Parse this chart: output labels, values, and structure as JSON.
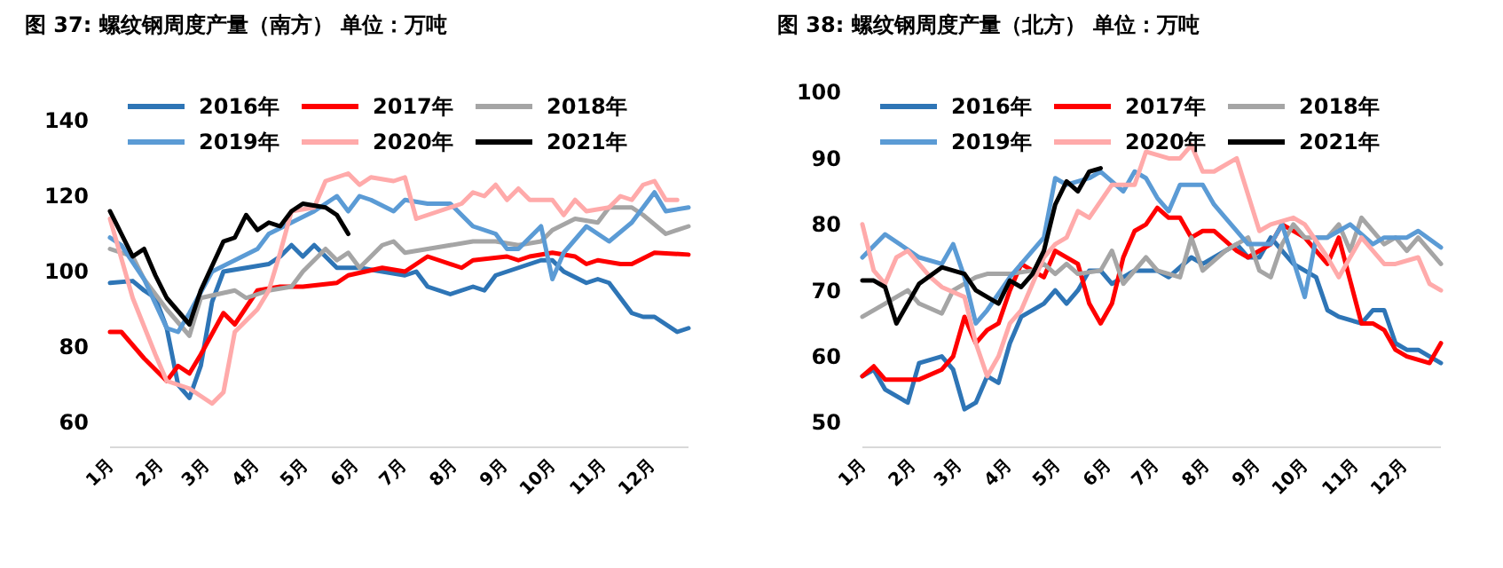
{
  "chart_data": [
    {
      "type": "line",
      "title": "图 37:   螺纹钢周度产量（南方）    单位：万吨",
      "legend": "top",
      "grid": false,
      "marker": "none",
      "line_style": "solid",
      "xlim": [
        "--01-01",
        "--12-24"
      ],
      "xticks": [
        {
          "value": "--01-01",
          "label": "1月"
        },
        {
          "value": "--02-01",
          "label": "2月"
        },
        {
          "value": "--03-01",
          "label": "3月"
        },
        {
          "value": "--04-01",
          "label": "4月"
        },
        {
          "value": "--05-01",
          "label": "5月"
        },
        {
          "value": "--06-01",
          "label": "6月"
        },
        {
          "value": "--07-01",
          "label": "7月"
        },
        {
          "value": "--08-01",
          "label": "8月"
        },
        {
          "value": "--09-01",
          "label": "9月"
        },
        {
          "value": "--10-01",
          "label": "10月"
        },
        {
          "value": "--11-01",
          "label": "11月"
        },
        {
          "value": "--12-01",
          "label": "12月"
        }
      ],
      "ylim": [
        60,
        140
      ],
      "yticks": [
        60,
        80,
        100,
        120,
        140
      ],
      "series": [
        {
          "name": "2016年",
          "color": "#2e75b6",
          "x": [
            "--01-01",
            "--01-15",
            "--01-22",
            "--01-29",
            "--02-05",
            "--02-12",
            "--02-19",
            "--02-26",
            "--03-05",
            "--03-12",
            "--03-26",
            "--04-09",
            "--04-16",
            "--04-23",
            "--04-30",
            "--05-07",
            "--05-21",
            "--06-04",
            "--06-18",
            "--07-02",
            "--07-09",
            "--07-16",
            "--07-30",
            "--08-13",
            "--08-20",
            "--08-27",
            "--09-10",
            "--09-24",
            "--10-01",
            "--10-08",
            "--10-22",
            "--10-29",
            "--11-05",
            "--11-19",
            "--11-26",
            "--12-03",
            "--12-17",
            "--12-24"
          ],
          "values": [
            97,
            97.5,
            95,
            93,
            85,
            70,
            66.5,
            75,
            92,
            100,
            101,
            102,
            104,
            107,
            104,
            107,
            101,
            101,
            100,
            99,
            100,
            96,
            94,
            96,
            95,
            99,
            101,
            103,
            103,
            100,
            97,
            98,
            97,
            89,
            88,
            88,
            84,
            85
          ]
        },
        {
          "name": "2017年",
          "color": "#ff0000",
          "x": [
            "--01-01",
            "--01-08",
            "--01-22",
            "--02-05",
            "--02-12",
            "--02-19",
            "--02-26",
            "--03-12",
            "--03-19",
            "--04-02",
            "--04-16",
            "--04-30",
            "--05-21",
            "--05-28",
            "--06-18",
            "--07-02",
            "--07-16",
            "--07-23",
            "--08-06",
            "--08-13",
            "--09-03",
            "--09-10",
            "--09-17",
            "--10-01",
            "--10-15",
            "--10-22",
            "--10-29",
            "--11-12",
            "--11-19",
            "--12-03",
            "--12-24"
          ],
          "values": [
            84,
            84,
            77,
            71,
            75,
            73,
            78,
            89,
            86,
            95,
            96,
            96,
            97,
            99,
            101,
            100,
            104,
            103,
            101,
            103,
            104,
            103,
            104,
            105,
            104,
            102,
            103,
            102,
            102,
            105,
            104.5
          ]
        },
        {
          "name": "2018年",
          "color": "#a5a5a5",
          "x": [
            "--01-01",
            "--01-15",
            "--01-22",
            "--02-05",
            "--02-19",
            "--02-26",
            "--03-19",
            "--03-26",
            "--04-09",
            "--04-23",
            "--04-30",
            "--05-14",
            "--05-21",
            "--05-28",
            "--06-04",
            "--06-18",
            "--06-25",
            "--07-02",
            "--07-16",
            "--07-30",
            "--08-13",
            "--08-27",
            "--09-10",
            "--09-24",
            "--10-01",
            "--10-15",
            "--10-29",
            "--11-05",
            "--11-19",
            "--11-26",
            "--12-10",
            "--12-24"
          ],
          "values": [
            106,
            104,
            98,
            90,
            83,
            93,
            95,
            93,
            95,
            96,
            100,
            106,
            103,
            105,
            101,
            107,
            108,
            105,
            106,
            107,
            108,
            108,
            107,
            108,
            111,
            114,
            113,
            117,
            117,
            115,
            110,
            112
          ]
        },
        {
          "name": "2019年",
          "color": "#5b9bd5",
          "x": [
            "--01-01",
            "--01-08",
            "--01-22",
            "--02-05",
            "--02-12",
            "--02-19",
            "--03-05",
            "--03-19",
            "--04-02",
            "--04-09",
            "--04-23",
            "--05-07",
            "--05-21",
            "--05-28",
            "--06-04",
            "--06-11",
            "--06-25",
            "--07-02",
            "--07-16",
            "--07-30",
            "--08-13",
            "--08-27",
            "--09-03",
            "--09-10",
            "--09-24",
            "--10-01",
            "--10-08",
            "--10-22",
            "--11-05",
            "--11-19",
            "--12-03",
            "--12-10",
            "--12-24"
          ],
          "values": [
            109,
            107,
            98,
            85,
            84,
            89,
            100,
            103,
            106,
            110,
            113,
            116,
            120,
            116,
            120,
            119,
            116,
            119,
            118,
            118,
            112,
            110,
            106,
            106,
            112,
            98,
            105,
            112,
            108,
            113,
            121,
            116,
            117
          ]
        },
        {
          "name": "2020年",
          "color": "#ffaaaa",
          "x": [
            "--01-01",
            "--01-15",
            "--01-29",
            "--02-05",
            "--02-19",
            "--02-26",
            "--03-05",
            "--03-12",
            "--03-19",
            "--04-02",
            "--04-09",
            "--04-16",
            "--04-23",
            "--05-07",
            "--05-14",
            "--05-28",
            "--06-04",
            "--06-11",
            "--06-25",
            "--07-02",
            "--07-09",
            "--07-23",
            "--08-06",
            "--08-13",
            "--08-20",
            "--08-27",
            "--09-03",
            "--09-10",
            "--09-17",
            "--10-01",
            "--10-08",
            "--10-15",
            "--10-22",
            "--11-05",
            "--11-12",
            "--11-19",
            "--11-26",
            "--12-03",
            "--12-10",
            "--12-17"
          ],
          "values": [
            114,
            93,
            78,
            71,
            69,
            67,
            65,
            68,
            84,
            90,
            95,
            105,
            116,
            117,
            124,
            126,
            123,
            125,
            124,
            125,
            114,
            116,
            118,
            121,
            120,
            123,
            119,
            122,
            119,
            119,
            115,
            119,
            116,
            117,
            120,
            119,
            123,
            124,
            119,
            119
          ]
        },
        {
          "name": "2021年",
          "color": "#000000",
          "x": [
            "--01-01",
            "--01-08",
            "--01-15",
            "--01-22",
            "--01-29",
            "--02-05",
            "--02-19",
            "--02-26",
            "--03-12",
            "--03-19",
            "--03-26",
            "--04-02",
            "--04-09",
            "--04-16",
            "--04-23",
            "--04-30",
            "--05-14",
            "--05-21",
            "--05-28"
          ],
          "values": [
            116,
            110,
            104,
            106,
            99,
            93,
            86,
            95,
            108,
            109,
            115,
            111,
            113,
            112,
            116,
            118,
            117,
            115,
            110
          ]
        }
      ]
    },
    {
      "type": "line",
      "title": "图 38:   螺纹钢周度产量（北方）    单位：万吨",
      "legend": "top",
      "grid": false,
      "marker": "none",
      "line_style": "solid",
      "xlim": [
        "--01-01",
        "--12-24"
      ],
      "xticks": [
        {
          "value": "--01-01",
          "label": "1月"
        },
        {
          "value": "--02-01",
          "label": "2月"
        },
        {
          "value": "--03-01",
          "label": "3月"
        },
        {
          "value": "--04-01",
          "label": "4月"
        },
        {
          "value": "--05-01",
          "label": "5月"
        },
        {
          "value": "--06-01",
          "label": "6月"
        },
        {
          "value": "--07-01",
          "label": "7月"
        },
        {
          "value": "--08-01",
          "label": "8月"
        },
        {
          "value": "--09-01",
          "label": "9月"
        },
        {
          "value": "--10-01",
          "label": "10月"
        },
        {
          "value": "--11-01",
          "label": "11月"
        },
        {
          "value": "--12-01",
          "label": "12月"
        }
      ],
      "ylim": [
        50,
        100
      ],
      "yticks": [
        50,
        60,
        70,
        80,
        90,
        100
      ],
      "series": [
        {
          "name": "2016年",
          "color": "#2e75b6",
          "x": [
            "--01-01",
            "--01-08",
            "--01-15",
            "--01-29",
            "--02-05",
            "--02-19",
            "--02-26",
            "--03-05",
            "--03-12",
            "--03-19",
            "--03-26",
            "--04-02",
            "--04-09",
            "--04-23",
            "--04-30",
            "--05-07",
            "--05-14",
            "--05-21",
            "--05-28",
            "--06-04",
            "--06-18",
            "--06-25",
            "--07-02",
            "--07-09",
            "--07-23",
            "--07-30",
            "--08-06",
            "--08-20",
            "--08-27",
            "--09-03",
            "--09-10",
            "--09-24",
            "--10-01",
            "--10-08",
            "--10-15",
            "--10-22",
            "--11-05",
            "--11-12",
            "--11-19",
            "--11-26",
            "--12-03",
            "--12-10",
            "--12-24"
          ],
          "values": [
            57,
            58,
            55,
            53,
            59,
            60,
            58,
            52,
            53,
            57,
            56,
            62,
            66,
            68,
            70,
            68,
            70,
            73,
            73,
            71,
            73,
            73,
            73,
            72,
            75,
            74,
            75,
            77,
            75,
            75,
            78,
            74,
            73,
            72,
            67,
            66,
            65,
            67,
            67,
            62,
            61,
            61,
            59
          ]
        },
        {
          "name": "2017年",
          "color": "#ff0000",
          "x": [
            "--01-01",
            "--01-08",
            "--01-15",
            "--02-05",
            "--02-19",
            "--02-26",
            "--03-05",
            "--03-12",
            "--03-19",
            "--03-26",
            "--04-02",
            "--04-09",
            "--04-16",
            "--04-23",
            "--04-30",
            "--05-14",
            "--05-21",
            "--05-28",
            "--06-04",
            "--06-11",
            "--06-18",
            "--06-25",
            "--07-02",
            "--07-09",
            "--07-16",
            "--07-23",
            "--07-30",
            "--08-06",
            "--08-20",
            "--08-27",
            "--09-10",
            "--09-17",
            "--10-01",
            "--10-08",
            "--10-15",
            "--10-22",
            "--11-05",
            "--11-12",
            "--11-19",
            "--11-26",
            "--12-03",
            "--12-17",
            "--12-24"
          ],
          "values": [
            57,
            58.5,
            56.5,
            56.5,
            58,
            60,
            66,
            62,
            64,
            65,
            70,
            74,
            73,
            72,
            76,
            74,
            68,
            65,
            68,
            75,
            79,
            80,
            82.5,
            81,
            81,
            78,
            79,
            79,
            76,
            75,
            77,
            80,
            78,
            76,
            74,
            78,
            65,
            65,
            64,
            61,
            60,
            59,
            62
          ]
        },
        {
          "name": "2018年",
          "color": "#a5a5a5",
          "x": [
            "--01-01",
            "--01-15",
            "--01-29",
            "--02-05",
            "--02-19",
            "--02-26",
            "--03-12",
            "--03-19",
            "--04-02",
            "--04-16",
            "--04-23",
            "--04-30",
            "--05-07",
            "--05-14",
            "--05-28",
            "--06-04",
            "--06-11",
            "--06-25",
            "--07-02",
            "--07-16",
            "--07-23",
            "--07-30",
            "--08-13",
            "--08-27",
            "--09-03",
            "--09-10",
            "--09-17",
            "--09-24",
            "--10-01",
            "--10-15",
            "--10-22",
            "--10-29",
            "--11-05",
            "--11-19",
            "--11-26",
            "--12-03",
            "--12-10",
            "--12-24"
          ],
          "values": [
            66,
            68,
            70,
            68,
            66.5,
            70,
            72,
            72.5,
            72.5,
            73,
            74,
            72.5,
            74,
            72.5,
            73,
            76,
            71,
            75,
            73,
            72,
            78,
            73,
            76,
            78,
            73,
            72,
            77,
            80,
            78,
            78,
            80,
            76,
            81,
            77,
            78,
            76,
            78,
            74
          ]
        },
        {
          "name": "2019年",
          "color": "#5b9bd5",
          "x": [
            "--01-01",
            "--01-15",
            "--02-05",
            "--02-19",
            "--02-26",
            "--03-05",
            "--03-12",
            "--03-19",
            "--04-02",
            "--04-09",
            "--04-23",
            "--04-30",
            "--05-07",
            "--05-21",
            "--05-28",
            "--06-11",
            "--06-18",
            "--06-25",
            "--07-02",
            "--07-09",
            "--07-16",
            "--07-30",
            "--08-06",
            "--08-13",
            "--08-27",
            "--09-10",
            "--09-17",
            "--10-01",
            "--10-08",
            "--10-15",
            "--10-22",
            "--10-29",
            "--11-12",
            "--11-19",
            "--12-03",
            "--12-10",
            "--12-24"
          ],
          "values": [
            75,
            78.5,
            75,
            74,
            77,
            72,
            65,
            67,
            72,
            74,
            78,
            87,
            86,
            87,
            88,
            85,
            88,
            87,
            84,
            82,
            86,
            86,
            83,
            81,
            77,
            77,
            80,
            69,
            78,
            78,
            79,
            80,
            77,
            78,
            78,
            79,
            76.5
          ]
        },
        {
          "name": "2020年",
          "color": "#ffaaaa",
          "x": [
            "--01-01",
            "--01-08",
            "--01-15",
            "--01-22",
            "--01-29",
            "--02-12",
            "--02-19",
            "--03-05",
            "--03-12",
            "--03-19",
            "--03-26",
            "--04-02",
            "--04-09",
            "--04-23",
            "--04-30",
            "--05-07",
            "--05-14",
            "--05-21",
            "--06-04",
            "--06-18",
            "--06-25",
            "--07-09",
            "--07-16",
            "--07-23",
            "--07-30",
            "--08-06",
            "--08-20",
            "--09-03",
            "--09-10",
            "--09-24",
            "--10-01",
            "--10-15",
            "--10-22",
            "--11-05",
            "--11-19",
            "--11-26",
            "--12-10",
            "--12-17",
            "--12-24"
          ],
          "values": [
            80,
            73,
            71,
            75,
            76,
            72,
            70.5,
            69,
            62,
            57,
            60,
            65,
            67,
            75,
            77,
            78,
            82,
            81,
            86,
            86,
            91,
            90,
            90,
            92,
            88,
            88,
            90,
            79,
            80,
            81,
            80,
            75,
            72,
            78,
            74,
            74,
            75,
            71,
            70
          ]
        },
        {
          "name": "2021年",
          "color": "#000000",
          "x": [
            "--01-01",
            "--01-08",
            "--01-15",
            "--01-22",
            "--02-05",
            "--02-19",
            "--03-05",
            "--03-12",
            "--03-19",
            "--03-26",
            "--04-02",
            "--04-09",
            "--04-16",
            "--04-23",
            "--04-30",
            "--05-07",
            "--05-14",
            "--05-21",
            "--05-28"
          ],
          "values": [
            71.5,
            71.5,
            70.5,
            65,
            71,
            73.5,
            72.5,
            70,
            69,
            68,
            71.5,
            70.5,
            72.5,
            76,
            83,
            86.5,
            85,
            88,
            88.5
          ]
        }
      ]
    }
  ]
}
